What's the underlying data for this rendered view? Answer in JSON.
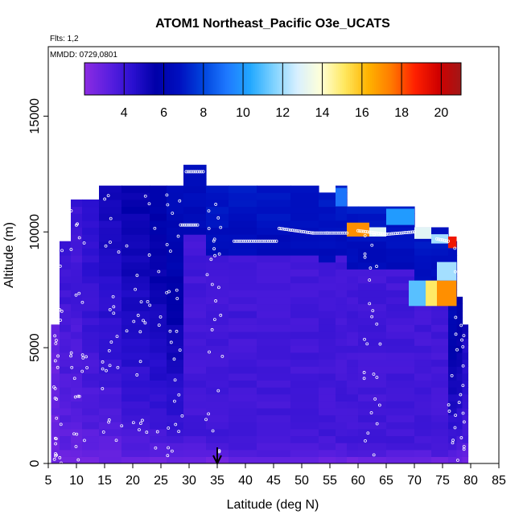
{
  "chart_data": {
    "type": "heatmap",
    "title": "ATOM1 Northeast_Pacific O3e_UCATS",
    "annotations": {
      "flights": "Flts: 1,2",
      "dates": "MMDD: 0729,0801"
    },
    "xlabel": "Latitude (deg N)",
    "ylabel": "Altitude (m)",
    "xlim": [
      5,
      85
    ],
    "ylim": [
      0,
      18000
    ],
    "x_ticks": [
      "5",
      "10",
      "15",
      "20",
      "25",
      "30",
      "35",
      "40",
      "45",
      "50",
      "55",
      "60",
      "65",
      "70",
      "75",
      "80",
      "85"
    ],
    "y_ticks": [
      "0",
      "5000",
      "10000",
      "15000"
    ],
    "colorbar": {
      "range": [
        2,
        21
      ],
      "ticks": [
        "4",
        "6",
        "8",
        "10",
        "12",
        "14",
        "16",
        "18",
        "20"
      ],
      "placement": "top-inside",
      "colors": [
        "#8a2be2",
        "#5b1fe0",
        "#2a10d0",
        "#0000a8",
        "#0010c0",
        "#0044dd",
        "#1e78ff",
        "#22a8ff",
        "#7fd2ff",
        "#d8f0ff",
        "#ffffd8",
        "#ffe860",
        "#ffb400",
        "#ff7a00",
        "#ff2000",
        "#d00000",
        "#a01818"
      ]
    },
    "marker": {
      "x": 35,
      "label": "arrow"
    },
    "columns": [
      {
        "x0": 5.5,
        "x1": 7,
        "top": 5800,
        "hi": 3
      },
      {
        "x0": 7,
        "x1": 9,
        "top": 9500,
        "hi": 4
      },
      {
        "x0": 9,
        "x1": 11,
        "top": 11300,
        "hi": 4
      },
      {
        "x0": 11,
        "x1": 14,
        "top": 11300,
        "hi": 4.5
      },
      {
        "x0": 14,
        "x1": 18,
        "top": 11900,
        "hi": 5
      },
      {
        "x0": 18,
        "x1": 23,
        "top": 11900,
        "hi": 5.5
      },
      {
        "x0": 23,
        "x1": 26,
        "top": 11900,
        "hi": 6
      },
      {
        "x0": 26,
        "x1": 29,
        "top": 11900,
        "hi": 6.5
      },
      {
        "x0": 29,
        "x1": 33,
        "top": 12900,
        "hi": 6.8
      },
      {
        "x0": 33,
        "x1": 37,
        "top": 11900,
        "hi": 7
      },
      {
        "x0": 37,
        "x1": 42,
        "top": 11900,
        "hi": 7
      },
      {
        "x0": 42,
        "x1": 48,
        "top": 11900,
        "hi": 7
      },
      {
        "x0": 48,
        "x1": 53,
        "top": 11900,
        "hi": 7
      },
      {
        "x0": 53,
        "x1": 56,
        "top": 11500,
        "hi": 7
      },
      {
        "x0": 56,
        "x1": 58,
        "top": 11900,
        "hi": 7
      },
      {
        "x0": 58,
        "x1": 60,
        "top": 11000,
        "hi": 7
      },
      {
        "x0": 60,
        "x1": 65,
        "top": 11000,
        "hi": 7
      },
      {
        "x0": 65,
        "x1": 70,
        "top": 11000,
        "hi": 7
      },
      {
        "x0": 70,
        "x1": 73,
        "top": 10200,
        "hi": 7
      },
      {
        "x0": 73,
        "x1": 76,
        "top": 10000,
        "hi": 7
      },
      {
        "x0": 76,
        "x1": 77.5,
        "top": 9500,
        "hi": 7
      },
      {
        "x0": 77.5,
        "x1": 78.5,
        "top": 7000,
        "hi": 6
      },
      {
        "x0": 78.5,
        "x1": 79.5,
        "top": 6000,
        "hi": 5
      }
    ],
    "hotspots": [
      {
        "x0": 58,
        "x1": 62,
        "y0": 9800,
        "y1": 10400,
        "v": 17
      },
      {
        "x0": 62,
        "x1": 65,
        "y0": 9800,
        "y1": 10200,
        "v": 13
      },
      {
        "x0": 65,
        "x1": 70,
        "y0": 10300,
        "y1": 11000,
        "v": 10
      },
      {
        "x0": 70,
        "x1": 73,
        "y0": 9700,
        "y1": 10200,
        "v": 13
      },
      {
        "x0": 73,
        "x1": 76,
        "y0": 9500,
        "y1": 9900,
        "v": 12
      },
      {
        "x0": 76,
        "x1": 77.5,
        "y0": 9300,
        "y1": 9800,
        "v": 19
      },
      {
        "x0": 69,
        "x1": 72,
        "y0": 6800,
        "y1": 7900,
        "v": 11
      },
      {
        "x0": 72,
        "x1": 74,
        "y0": 6800,
        "y1": 7900,
        "v": 15
      },
      {
        "x0": 74,
        "x1": 77.5,
        "y0": 6800,
        "y1": 7900,
        "v": 17
      },
      {
        "x0": 74,
        "x1": 77.5,
        "y0": 7900,
        "y1": 8700,
        "v": 12
      },
      {
        "x0": 56,
        "x1": 58,
        "y0": 11100,
        "y1": 11900,
        "v": 9
      }
    ],
    "flight_tracks": [
      {
        "x": [
          29.5,
          32.5
        ],
        "y": [
          12600,
          12600
        ]
      },
      {
        "x": [
          28.5,
          31.5
        ],
        "y": [
          10300,
          10300
        ]
      },
      {
        "x": [
          38,
          45.5
        ],
        "y": [
          9600,
          9600
        ]
      },
      {
        "x": [
          46,
          52,
          54.5,
          58
        ],
        "y": [
          10150,
          9950,
          9950,
          9950
        ]
      },
      {
        "x": [
          60,
          65,
          70
        ],
        "y": [
          10050,
          9900,
          10000
        ]
      },
      {
        "x": [
          74,
          76
        ],
        "y": [
          9700,
          9600
        ]
      }
    ]
  }
}
